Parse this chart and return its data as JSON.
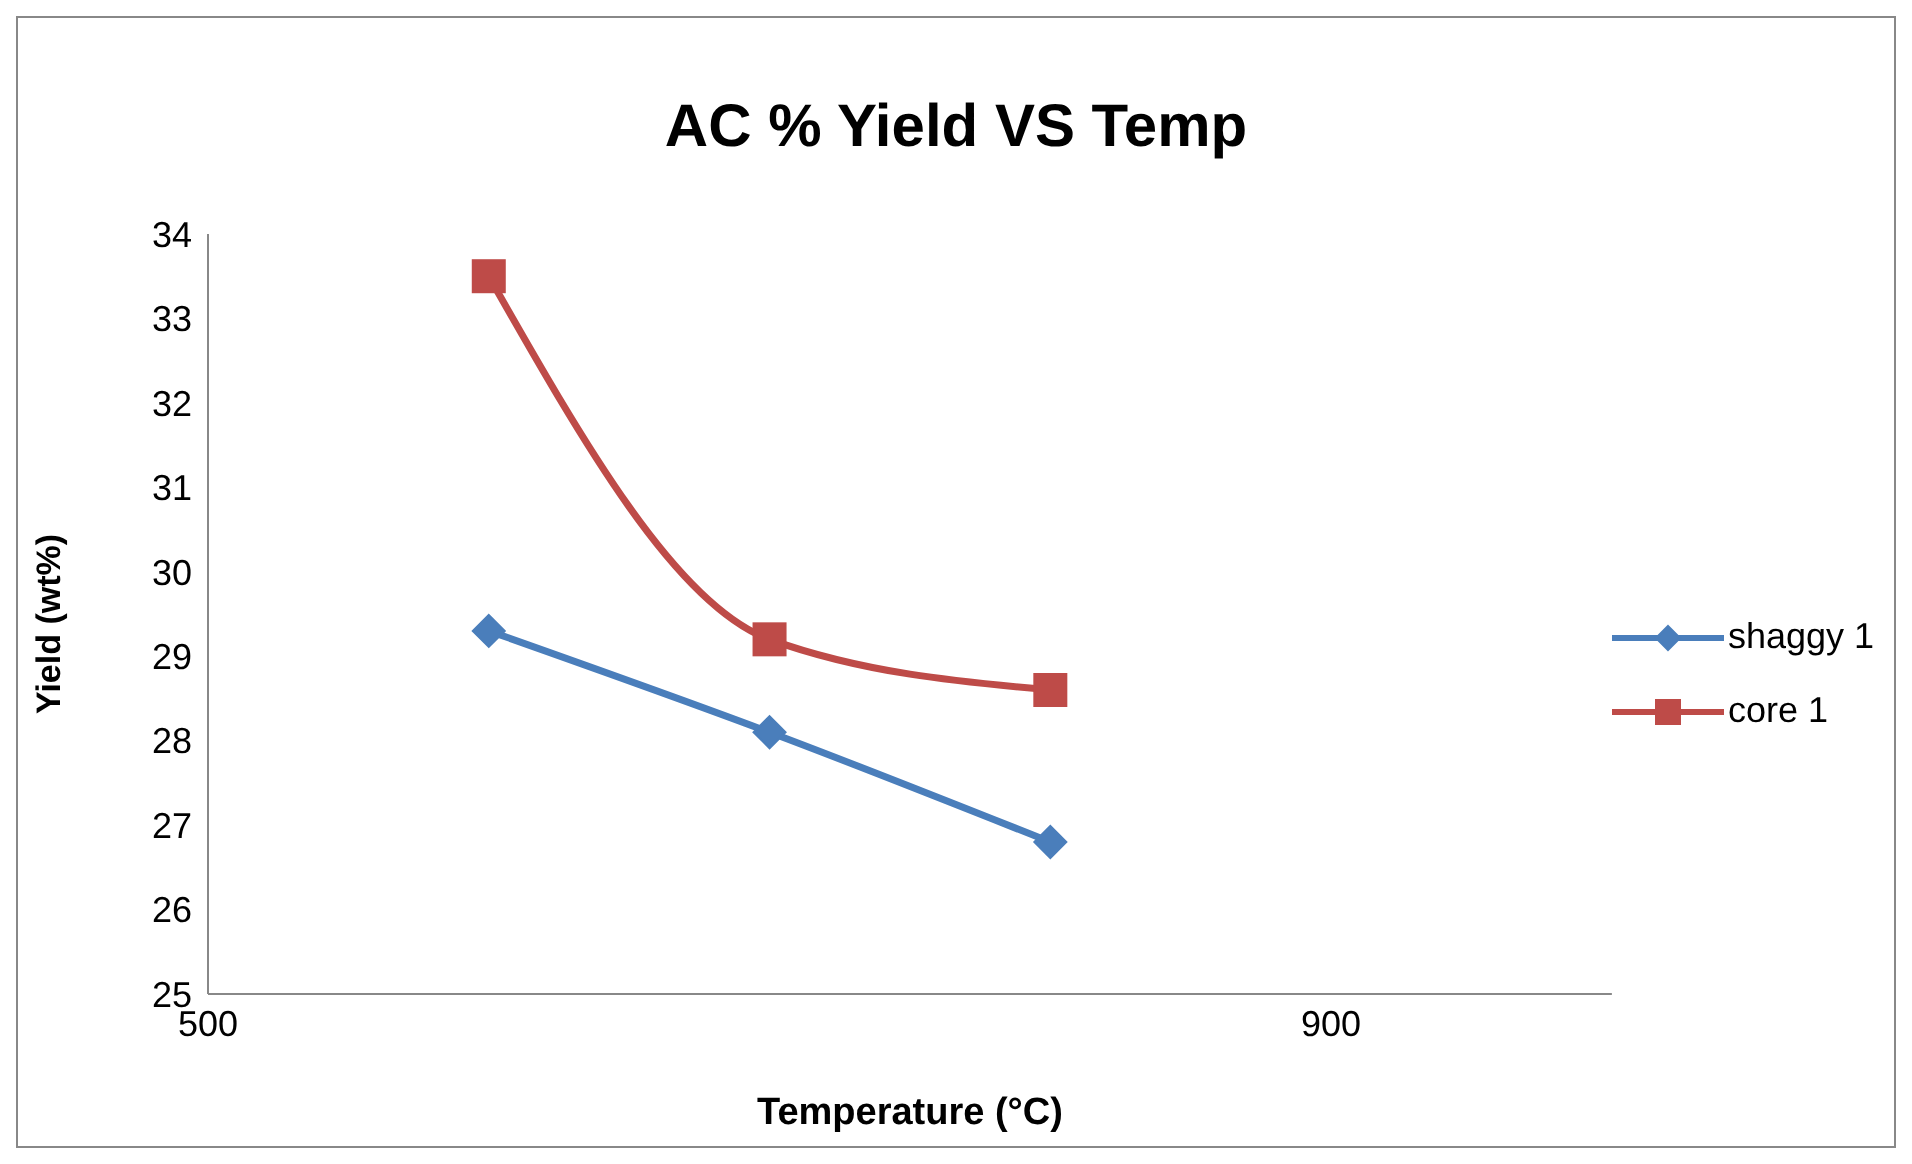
{
  "chart_data": {
    "type": "line",
    "title": "AC % Yield VS Temp",
    "xlabel": "Temperature (°C)",
    "ylabel": "Yield (wt%)",
    "xlim": [
      500,
      1000
    ],
    "xticks": [
      500,
      900
    ],
    "ylim": [
      25,
      34
    ],
    "yticks": [
      25,
      26,
      27,
      28,
      29,
      30,
      31,
      32,
      33,
      34
    ],
    "grid": false,
    "legend": "right",
    "line_style": "solid",
    "series": [
      {
        "name": "shaggy 1",
        "color": "#4a7ebb",
        "marker": "diamond",
        "x": [
          600,
          700,
          800
        ],
        "values": [
          29.3,
          28.1,
          26.8
        ]
      },
      {
        "name": "core 1",
        "color": "#be4b48",
        "marker": "square",
        "x": [
          600,
          700,
          800
        ],
        "values": [
          33.5,
          29.2,
          28.6
        ]
      }
    ]
  }
}
